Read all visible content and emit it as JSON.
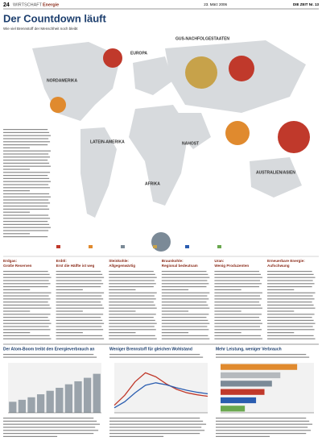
{
  "header": {
    "page": "24",
    "section": "WIRTSCHAFT",
    "topic": "Energie",
    "date": "23. März 2006",
    "paper": "DIE ZEIT Nr. 13"
  },
  "title": "Der Countdown läuft",
  "subtitle": "Wie viel Brennstoff der Menschheit noch bleibt",
  "regions": [
    "EUROPA",
    "GUS-NACHFOLGESTAATEN",
    "NORDAMERIKA",
    "LATEIN-AMERIKA",
    "NAHOST",
    "AFRIKA",
    "AUSTRALIEN/ASIEN"
  ],
  "columns": [
    {
      "kicker": "Erdgas:",
      "heading": "Große Reserven"
    },
    {
      "kicker": "Erdöl:",
      "heading": "Erst die Hälfte ist weg"
    },
    {
      "kicker": "Steinkohle:",
      "heading": "Allgegenwärtig"
    },
    {
      "kicker": "Braunkohle:",
      "heading": "Regional bedeutsam"
    },
    {
      "kicker": "Uran:",
      "heading": "Wenig Produzenten"
    },
    {
      "kicker": "Erneuerbare Energie:",
      "heading": "Aufschwung"
    }
  ],
  "charts": [
    {
      "type": "area",
      "title": "Der Atom-Boom treibt den Energieverbrauch an",
      "color": "#9aa3ab",
      "values": [
        22,
        26,
        31,
        37,
        44,
        50,
        57,
        63,
        70,
        78
      ],
      "ylim": [
        0,
        100
      ]
    },
    {
      "type": "line",
      "title": "Weniger Brennstoff für gleichen Wohlstand",
      "ylim": [
        0,
        100
      ],
      "series": [
        {
          "color": "#c0392b",
          "values": [
            15,
            35,
            62,
            80,
            72,
            58,
            47,
            40,
            36,
            33
          ]
        },
        {
          "color": "#2a5db0",
          "values": [
            10,
            22,
            40,
            55,
            60,
            56,
            50,
            45,
            41,
            38
          ]
        }
      ]
    },
    {
      "type": "hbar",
      "title": "Mehr Leistung, weniger Verbrauch",
      "xlim": [
        0,
        100
      ],
      "colors": [
        "#e08a2e",
        "#b5b9bd",
        "#7b8a97",
        "#c0392b",
        "#2a5db0",
        "#6aa84f"
      ],
      "values": [
        82,
        64,
        55,
        47,
        38,
        26
      ]
    }
  ]
}
